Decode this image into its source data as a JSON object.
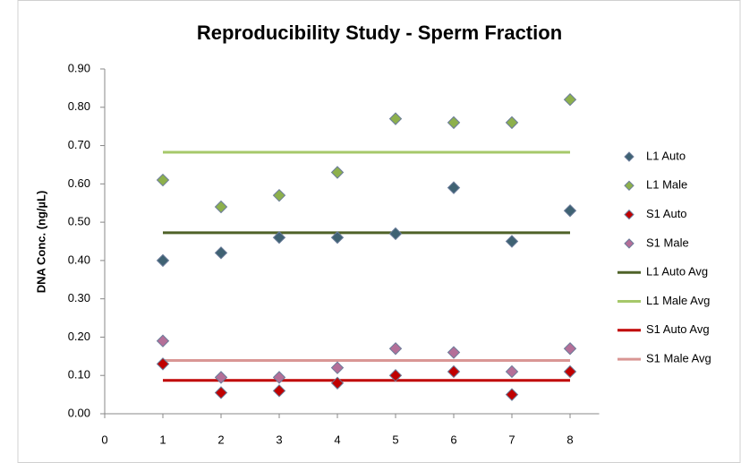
{
  "chart_data": {
    "type": "scatter",
    "title": "Reproducibility Study - Sperm Fraction",
    "y_label": "DNA Conc. (ng/µL)",
    "x": [
      1,
      2,
      3,
      4,
      5,
      6,
      7,
      8
    ],
    "xlim": [
      0,
      8.5
    ],
    "xticks": [
      0,
      1,
      2,
      3,
      4,
      5,
      6,
      7,
      8
    ],
    "ylim": [
      0,
      0.9
    ],
    "yticks": [
      {
        "value": 0,
        "label": "0.00"
      },
      {
        "value": 0.1,
        "label": "0.10"
      },
      {
        "value": 0.2,
        "label": "0.20"
      },
      {
        "value": 0.3,
        "label": "0.30"
      },
      {
        "value": 0.4,
        "label": "0.40"
      },
      {
        "value": 0.5,
        "label": "0.50"
      },
      {
        "value": 0.6,
        "label": "0.60"
      },
      {
        "value": 0.7,
        "label": "0.70"
      },
      {
        "value": 0.8,
        "label": "0.80"
      },
      {
        "value": 0.9,
        "label": "0.90"
      }
    ],
    "grid": false,
    "legend": "right",
    "series": [
      {
        "name": "L1 Auto",
        "style": "markers",
        "color": "#3f6273",
        "values": [
          0.4,
          0.42,
          0.46,
          0.46,
          0.47,
          0.59,
          0.45,
          0.53
        ]
      },
      {
        "name": "L1 Male",
        "style": "markers",
        "color": "#8db04c",
        "values": [
          0.61,
          0.54,
          0.57,
          0.63,
          0.77,
          0.76,
          0.76,
          0.82
        ]
      },
      {
        "name": "S1 Auto",
        "style": "markers",
        "color": "#c00000",
        "values": [
          0.13,
          0.055,
          0.06,
          0.08,
          0.1,
          0.11,
          0.05,
          0.11
        ]
      },
      {
        "name": "S1 Male",
        "style": "markers",
        "color": "#b46f98",
        "values": [
          0.19,
          0.095,
          0.095,
          0.12,
          0.17,
          0.16,
          0.11,
          0.17
        ]
      },
      {
        "name": "L1 Auto Avg",
        "style": "line",
        "color": "#4f6228",
        "values": [
          0.4725,
          0.4725,
          0.4725,
          0.4725,
          0.4725,
          0.4725,
          0.4725,
          0.4725
        ]
      },
      {
        "name": "L1 Male Avg",
        "style": "line",
        "color": "#a6c86a",
        "values": [
          0.6825,
          0.6825,
          0.6825,
          0.6825,
          0.6825,
          0.6825,
          0.6825,
          0.6825
        ]
      },
      {
        "name": "S1 Auto Avg",
        "style": "line",
        "color": "#c00000",
        "values": [
          0.087,
          0.087,
          0.087,
          0.087,
          0.087,
          0.087,
          0.087,
          0.087
        ]
      },
      {
        "name": "S1 Male Avg",
        "style": "line",
        "color": "#d99694",
        "values": [
          0.139,
          0.139,
          0.139,
          0.139,
          0.139,
          0.139,
          0.139,
          0.139
        ]
      }
    ]
  }
}
